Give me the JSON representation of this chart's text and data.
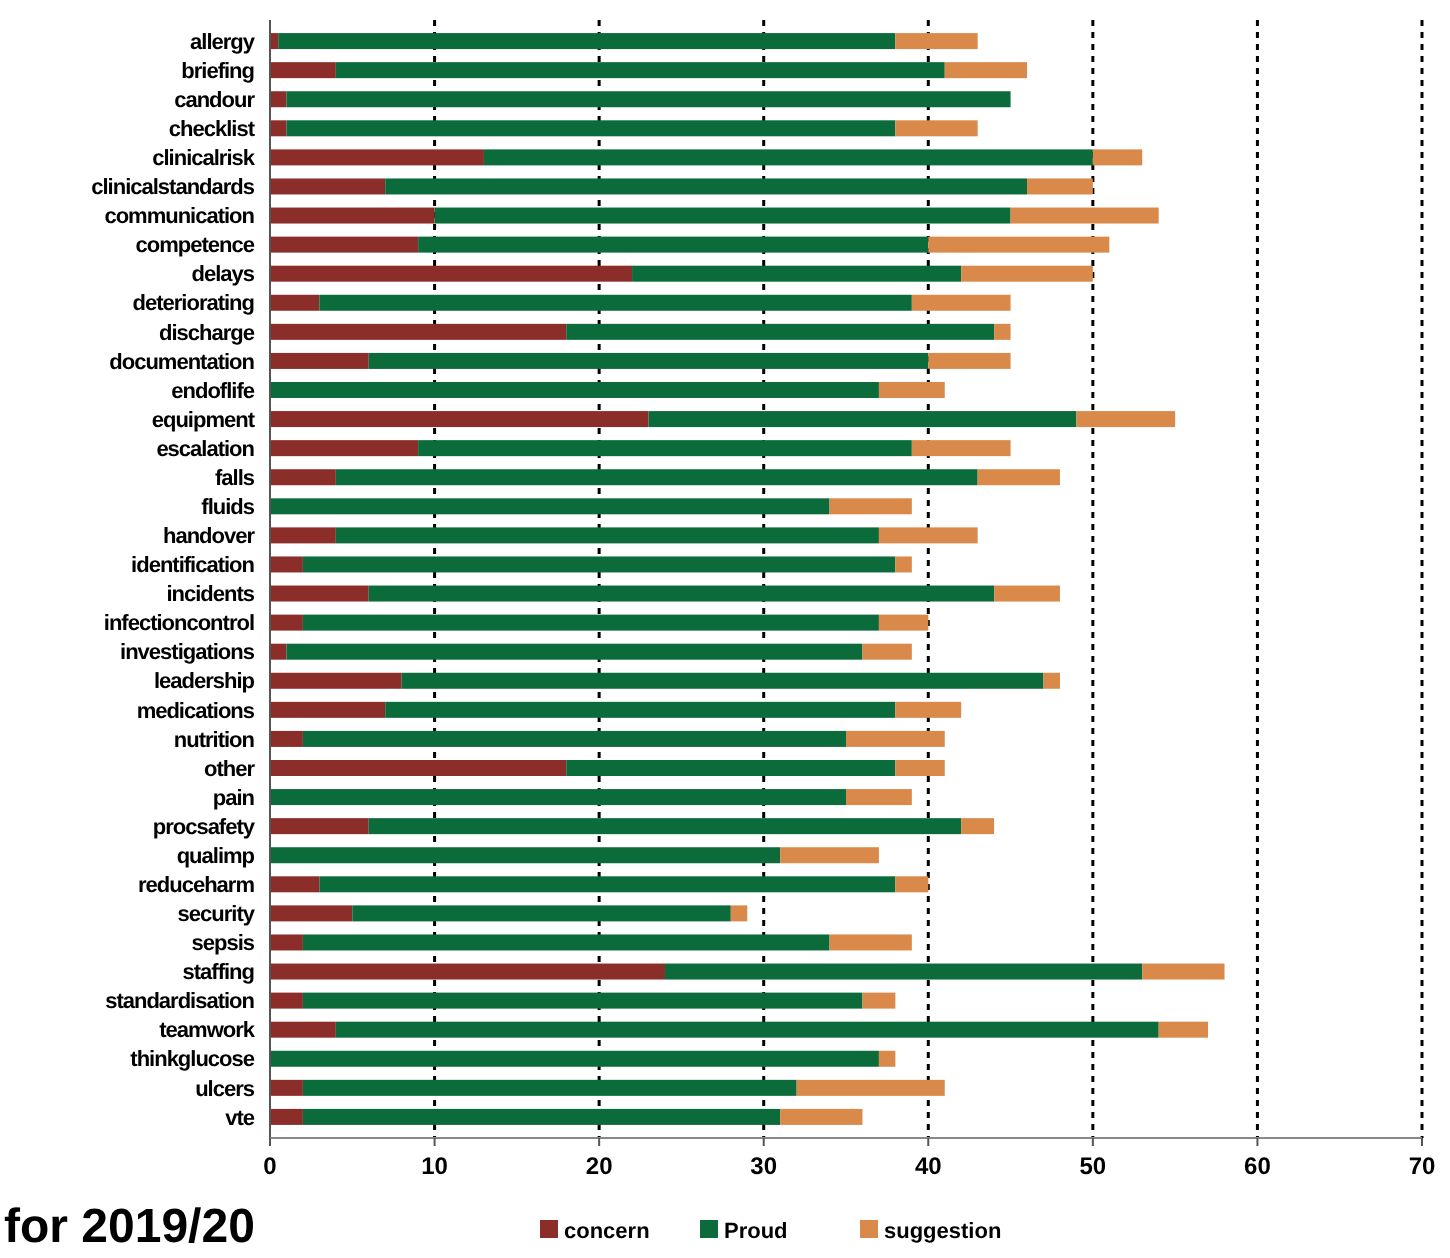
{
  "chart_data": {
    "type": "bar",
    "orientation": "horizontal",
    "stacked": true,
    "title": "for 2019/20",
    "categories": [
      "allergy",
      "briefing",
      "candour",
      "checklist",
      "clinicalrisk",
      "clinicalstandards",
      "communication",
      "competence",
      "delays",
      "deteriorating",
      "discharge",
      "documentation",
      "endoflife",
      "equipment",
      "escalation",
      "falls",
      "fluids",
      "handover",
      "identification",
      "incidents",
      "infectioncontrol",
      "investigations",
      "leadership",
      "medications",
      "nutrition",
      "other",
      "pain",
      "procsafety",
      "qualimp",
      "reduceharm",
      "security",
      "sepsis",
      "staffing",
      "standardisation",
      "teamwork",
      "thinkglucose",
      "ulcers",
      "vte"
    ],
    "series": [
      {
        "name": "concern",
        "color": "#8b2e2a",
        "values": [
          0.5,
          4,
          1,
          1,
          13,
          7,
          10,
          9,
          22,
          3,
          18,
          6,
          0,
          23,
          9,
          4,
          0,
          4,
          2,
          6,
          2,
          1,
          8,
          7,
          2,
          18,
          0,
          6,
          0,
          3,
          5,
          2,
          24,
          2,
          4,
          0,
          2,
          2
        ]
      },
      {
        "name": "Proud",
        "color": "#0b6b3a",
        "values": [
          37.5,
          37,
          44,
          37,
          37,
          39,
          35,
          31,
          20,
          36,
          26,
          34,
          37,
          26,
          30,
          39,
          34,
          33,
          36,
          38,
          35,
          35,
          39,
          31,
          33,
          20,
          35,
          36,
          31,
          35,
          23,
          32,
          29,
          34,
          50,
          37,
          30,
          29
        ]
      },
      {
        "name": "suggestion",
        "color": "#d9894a",
        "values": [
          5,
          5,
          0,
          5,
          3,
          4,
          9,
          11,
          8,
          6,
          1,
          5,
          4,
          6,
          6,
          5,
          5,
          6,
          1,
          4,
          3,
          3,
          1,
          4,
          6,
          3,
          4,
          2,
          6,
          2,
          1,
          5,
          5,
          2,
          3,
          1,
          9,
          5
        ]
      }
    ],
    "xlim": [
      0,
      70
    ],
    "xticks": [
      0,
      10,
      20,
      30,
      40,
      50,
      60,
      70
    ],
    "grid": "x",
    "legend": "bottom"
  }
}
